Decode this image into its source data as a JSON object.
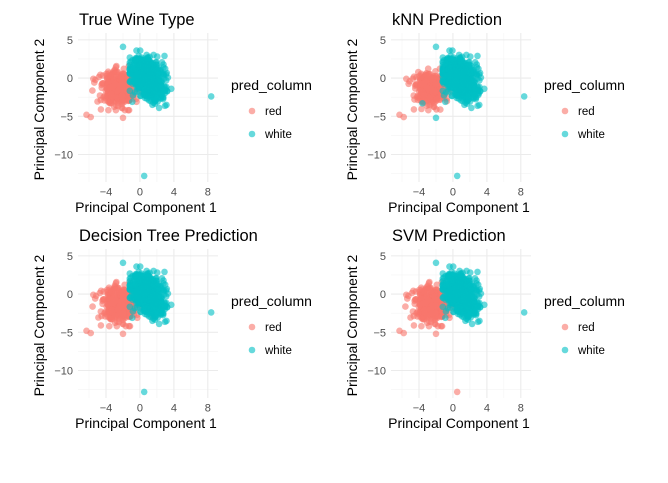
{
  "chart_data": [
    {
      "type": "scatter",
      "title": "True Wine Type",
      "xlabel": "Principal Component 1",
      "ylabel": "Principal Component 2",
      "xlim": [
        -7.3,
        9.2
      ],
      "ylim": [
        -13.6,
        5.9
      ],
      "xticks": [
        -4,
        0,
        4,
        8
      ],
      "xtick_labels": [
        "−4",
        "0",
        "4",
        "8"
      ],
      "yticks": [
        5,
        0,
        -5,
        -10
      ],
      "ytick_labels": [
        "5",
        "0",
        "−5",
        "−10"
      ],
      "grid": true,
      "legend": {
        "title": "pred_column",
        "position": "right",
        "entries": [
          "red",
          "white"
        ]
      },
      "series": [
        {
          "name": "red",
          "color": "#F8766D",
          "cluster": {
            "center": [
              -2.6,
              -1.2
            ],
            "spread": [
              1.1,
              1.1
            ],
            "n": 380
          },
          "outliers": [
            [
              -6.3,
              -4.8
            ],
            [
              -5.8,
              -5.1
            ],
            [
              -2.0,
              -5.2
            ],
            [
              -5.5,
              -0.1
            ],
            [
              -4.6,
              -4.1
            ]
          ]
        },
        {
          "name": "white",
          "color": "#00BFC4",
          "cluster": {
            "center": [
              0.9,
              0.0
            ],
            "spread": [
              0.9,
              1.3
            ],
            "n": 700
          },
          "outliers": [
            [
              8.4,
              -2.4
            ],
            [
              0.5,
              -12.8
            ],
            [
              -2.0,
              4.1
            ],
            [
              2.9,
              2.9
            ],
            [
              3.7,
              -1.4
            ],
            [
              -0.9,
              -3.1
            ]
          ]
        }
      ]
    },
    {
      "type": "scatter",
      "title": "kNN Prediction",
      "xlabel": "Principal Component 1",
      "ylabel": "Principal Component 2",
      "xlim": [
        -7.3,
        9.2
      ],
      "ylim": [
        -13.6,
        5.9
      ],
      "xticks": [
        -4,
        0,
        4,
        8
      ],
      "xtick_labels": [
        "−4",
        "0",
        "4",
        "8"
      ],
      "yticks": [
        5,
        0,
        -5,
        -10
      ],
      "ytick_labels": [
        "5",
        "0",
        "−5",
        "−10"
      ],
      "grid": true,
      "legend": {
        "title": "pred_column",
        "position": "right",
        "entries": [
          "red",
          "white"
        ]
      },
      "series": [
        {
          "name": "red",
          "color": "#F8766D",
          "cluster": {
            "center": [
              -2.7,
              -1.3
            ],
            "spread": [
              1.0,
              1.0
            ],
            "n": 340
          },
          "outliers": [
            [
              -6.3,
              -4.8
            ],
            [
              -5.8,
              -5.1
            ],
            [
              -5.5,
              -0.1
            ],
            [
              -4.6,
              -4.1
            ]
          ]
        },
        {
          "name": "white",
          "color": "#00BFC4",
          "cluster": {
            "center": [
              0.8,
              0.0
            ],
            "spread": [
              0.95,
              1.3
            ],
            "n": 740
          },
          "outliers": [
            [
              8.4,
              -2.4
            ],
            [
              0.5,
              -12.8
            ],
            [
              -2.0,
              -5.2
            ],
            [
              -2.0,
              4.1
            ],
            [
              2.9,
              2.9
            ],
            [
              3.7,
              -1.4
            ],
            [
              -0.9,
              -3.1
            ],
            [
              -3.6,
              -3.3
            ]
          ]
        }
      ]
    },
    {
      "type": "scatter",
      "title": "Decision Tree Prediction",
      "xlabel": "Principal Component 1",
      "ylabel": "Principal Component 2",
      "xlim": [
        -7.3,
        9.2
      ],
      "ylim": [
        -13.6,
        5.9
      ],
      "xticks": [
        -4,
        0,
        4,
        8
      ],
      "xtick_labels": [
        "−4",
        "0",
        "4",
        "8"
      ],
      "yticks": [
        5,
        0,
        -5,
        -10
      ],
      "ytick_labels": [
        "5",
        "0",
        "−5",
        "−10"
      ],
      "grid": true,
      "legend": {
        "title": "pred_column",
        "position": "right",
        "entries": [
          "red",
          "white"
        ]
      },
      "series": [
        {
          "name": "red",
          "color": "#F8766D",
          "cluster": {
            "center": [
              -2.5,
              -1.2
            ],
            "spread": [
              1.1,
              1.1
            ],
            "n": 390
          },
          "outliers": [
            [
              -6.3,
              -4.8
            ],
            [
              -5.8,
              -5.1
            ],
            [
              -2.0,
              -5.2
            ],
            [
              -5.5,
              -0.1
            ],
            [
              -4.6,
              -4.1
            ],
            [
              1.5,
              -3.0
            ]
          ]
        },
        {
          "name": "white",
          "color": "#00BFC4",
          "cluster": {
            "center": [
              0.9,
              0.0
            ],
            "spread": [
              0.9,
              1.3
            ],
            "n": 690
          },
          "outliers": [
            [
              8.4,
              -2.4
            ],
            [
              0.5,
              -12.8
            ],
            [
              -2.0,
              4.1
            ],
            [
              2.9,
              2.9
            ],
            [
              3.7,
              -1.4
            ],
            [
              -0.9,
              -3.1
            ]
          ]
        }
      ]
    },
    {
      "type": "scatter",
      "title": "SVM Prediction",
      "xlabel": "Principal Component 1",
      "ylabel": "Principal Component 2",
      "xlim": [
        -7.3,
        9.2
      ],
      "ylim": [
        -13.6,
        5.9
      ],
      "xticks": [
        -4,
        0,
        4,
        8
      ],
      "xtick_labels": [
        "−4",
        "0",
        "4",
        "8"
      ],
      "yticks": [
        5,
        0,
        -5,
        -10
      ],
      "ytick_labels": [
        "5",
        "0",
        "−5",
        "−10"
      ],
      "grid": true,
      "legend": {
        "title": "pred_column",
        "position": "right",
        "entries": [
          "red",
          "white"
        ]
      },
      "series": [
        {
          "name": "red",
          "color": "#F8766D",
          "cluster": {
            "center": [
              -2.6,
              -1.2
            ],
            "spread": [
              1.1,
              1.1
            ],
            "n": 390
          },
          "outliers": [
            [
              -6.3,
              -4.8
            ],
            [
              -5.8,
              -5.1
            ],
            [
              -2.0,
              -5.2
            ],
            [
              -5.5,
              -0.1
            ],
            [
              -4.6,
              -4.1
            ],
            [
              0.5,
              -12.8
            ]
          ]
        },
        {
          "name": "white",
          "color": "#00BFC4",
          "cluster": {
            "center": [
              0.9,
              0.0
            ],
            "spread": [
              0.9,
              1.3
            ],
            "n": 690
          },
          "outliers": [
            [
              8.4,
              -2.4
            ],
            [
              -2.0,
              4.1
            ],
            [
              2.9,
              2.9
            ],
            [
              3.7,
              -1.4
            ],
            [
              -0.9,
              -3.1
            ]
          ]
        }
      ]
    }
  ]
}
